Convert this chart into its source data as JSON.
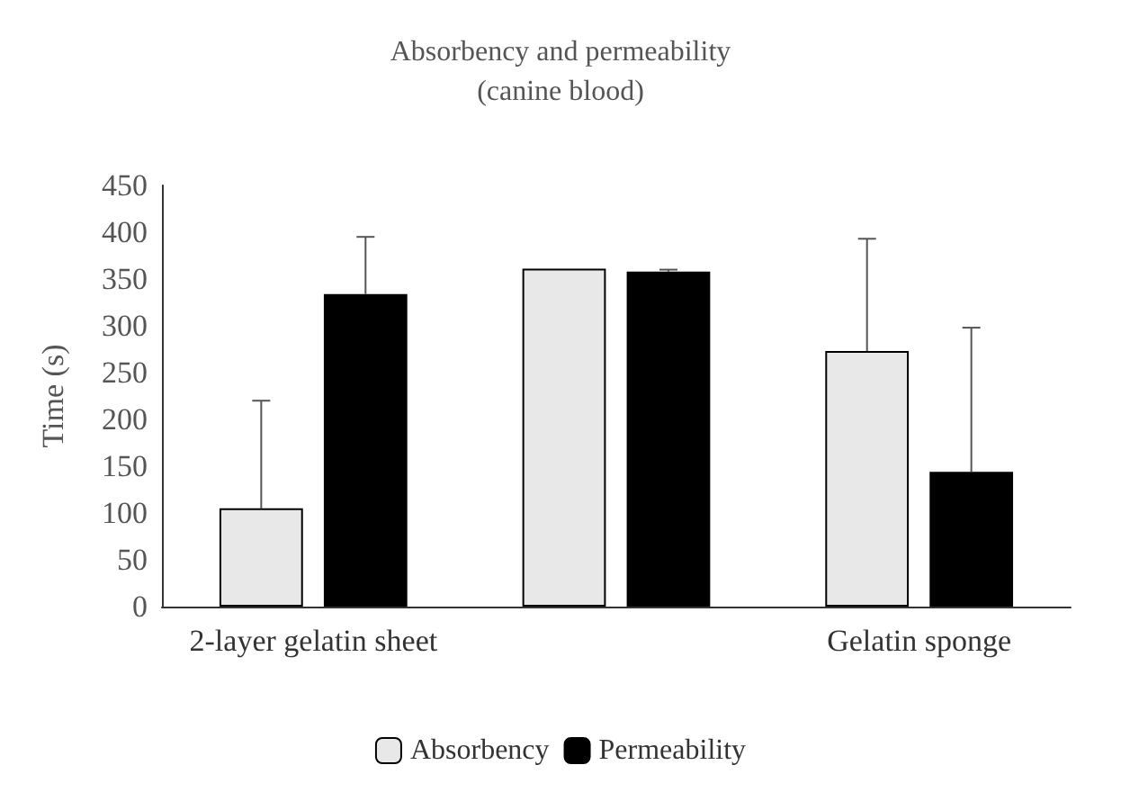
{
  "chart_data": {
    "type": "bar",
    "title": "Absorbency and permeability",
    "subtitle": "(canine blood)",
    "ylabel": "Time (s)",
    "categories": [
      "2-layer gelatin sheet",
      null,
      "Gelatin sponge"
    ],
    "series": [
      {
        "name": "Absorbency",
        "color": "#e8e8e8",
        "values": [
          105,
          361,
          273
        ],
        "errors": [
          [
            105,
            220
          ],
          null,
          [
            273,
            393
          ]
        ]
      },
      {
        "name": "Permeability",
        "color": "#000000",
        "values": [
          334,
          358,
          144
        ],
        "errors": [
          [
            334,
            395
          ],
          [
            358,
            360
          ],
          [
            144,
            298
          ]
        ]
      }
    ],
    "ylim": [
      0,
      450
    ],
    "yticks": [
      0,
      50,
      100,
      150,
      200,
      250,
      300,
      350,
      400,
      450
    ],
    "grid": false,
    "legend": "bottom"
  }
}
